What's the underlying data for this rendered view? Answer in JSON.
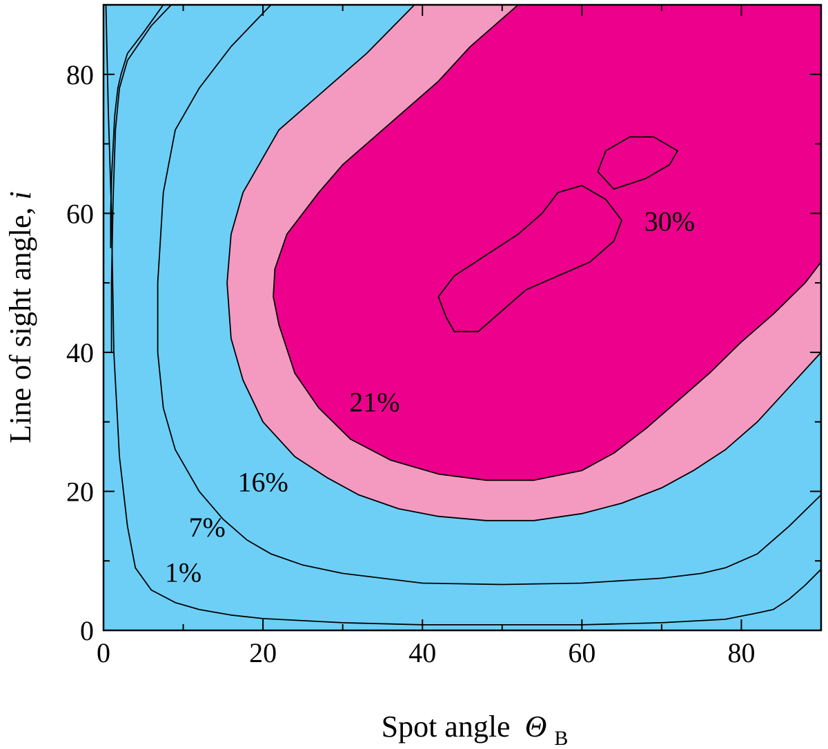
{
  "chart_data": {
    "type": "contour",
    "title": "",
    "xlabel": "Spot angle",
    "xlabel_symbol": "Θ",
    "xlabel_subscript": "B",
    "ylabel": "Line of sight angle, ",
    "ylabel_symbol": "i",
    "xlim": [
      0,
      90
    ],
    "ylim": [
      0,
      90
    ],
    "x_ticks": [
      0,
      20,
      40,
      60,
      80
    ],
    "y_ticks": [
      0,
      20,
      40,
      60,
      80
    ],
    "grid": false,
    "colors": {
      "low": "#6dcff6",
      "mid": "#f49ac1",
      "high": "#ec008c",
      "line": "#000000"
    },
    "levels": [
      {
        "label": "1%",
        "label_pos": [
          10,
          7
        ],
        "line": [
          [
            0.3,
            90
          ],
          [
            0.6,
            75
          ],
          [
            1.0,
            60
          ],
          [
            1.3,
            40
          ],
          [
            2,
            25
          ],
          [
            3,
            15
          ],
          [
            4,
            9
          ],
          [
            6,
            5.8
          ],
          [
            9,
            4
          ],
          [
            12,
            3
          ],
          [
            16,
            2.2
          ],
          [
            20,
            1.7
          ],
          [
            30,
            1.1
          ],
          [
            40,
            0.8
          ],
          [
            50,
            0.8
          ],
          [
            60,
            0.8
          ],
          [
            70,
            1.1
          ],
          [
            78,
            1.6
          ],
          [
            82,
            2.5
          ],
          [
            84,
            3
          ],
          [
            86,
            4.5
          ],
          [
            88,
            6.5
          ],
          [
            90,
            8.8
          ]
        ]
      },
      {
        "label": "7%",
        "label_pos": [
          13,
          13.5
        ],
        "line": [
          [
            7.5,
            90
          ],
          [
            5,
            86
          ],
          [
            3,
            83
          ],
          [
            2.2,
            80
          ],
          [
            1.8,
            78
          ],
          [
            1.4,
            74
          ],
          [
            1.0,
            65
          ],
          [
            0.9,
            60
          ],
          [
            0.9,
            55
          ]
        ]
      },
      {
        "label": "7%",
        "label_pos": [
          13,
          13.5
        ],
        "line": [
          [
            8.5,
            90
          ],
          [
            6,
            87
          ],
          [
            3,
            82
          ],
          [
            2,
            78
          ],
          [
            1.5,
            72
          ],
          [
            1.2,
            62
          ],
          [
            1,
            50
          ],
          [
            1,
            40
          ]
        ]
      },
      {
        "label": "7%",
        "label_pos": [
          13,
          13.5
        ],
        "line": [
          [
            21,
            90
          ],
          [
            16,
            84
          ],
          [
            12,
            78
          ],
          [
            9,
            72
          ],
          [
            7.5,
            63
          ],
          [
            6.8,
            50
          ],
          [
            6.8,
            40
          ],
          [
            7.5,
            32
          ],
          [
            9,
            26
          ],
          [
            12,
            20
          ],
          [
            15,
            16
          ],
          [
            18,
            13
          ],
          [
            21,
            11
          ],
          [
            25,
            9.4
          ],
          [
            30,
            8.2
          ],
          [
            40,
            6.8
          ],
          [
            50,
            6.6
          ],
          [
            60,
            6.8
          ],
          [
            70,
            7.5
          ],
          [
            75,
            8.2
          ],
          [
            78,
            9
          ],
          [
            82,
            11
          ],
          [
            86,
            15
          ],
          [
            90,
            19.5
          ]
        ]
      },
      {
        "label": "16%",
        "label_pos": [
          20,
          20
        ],
        "line": [
          [
            39,
            90
          ],
          [
            33,
            83
          ],
          [
            27,
            77
          ],
          [
            22,
            72
          ],
          [
            19.5,
            67
          ],
          [
            17.5,
            63
          ],
          [
            16,
            57
          ],
          [
            15.5,
            50
          ],
          [
            16,
            42
          ],
          [
            17.5,
            36
          ],
          [
            20,
            30
          ],
          [
            24,
            25
          ],
          [
            28,
            22
          ],
          [
            32,
            19.5
          ],
          [
            37,
            17.5
          ],
          [
            42,
            16.4
          ],
          [
            48,
            15.8
          ],
          [
            54,
            15.8
          ],
          [
            60,
            16.8
          ],
          [
            65,
            18.3
          ],
          [
            70,
            20.5
          ],
          [
            74,
            23
          ],
          [
            78,
            26
          ],
          [
            82,
            30
          ],
          [
            86,
            35
          ],
          [
            90,
            40
          ]
        ]
      },
      {
        "label": "21%",
        "label_pos": [
          34,
          31.5
        ],
        "line": [
          [
            52,
            90
          ],
          [
            46,
            84
          ],
          [
            42,
            79
          ],
          [
            38,
            75
          ],
          [
            34,
            71
          ],
          [
            30,
            67
          ],
          [
            27,
            63
          ],
          [
            23,
            57
          ],
          [
            21.5,
            52
          ],
          [
            21.3,
            48
          ],
          [
            22,
            44
          ],
          [
            24,
            37
          ],
          [
            27,
            32
          ],
          [
            31,
            27.5
          ],
          [
            36,
            24.5
          ],
          [
            42,
            22.5
          ],
          [
            48,
            21.6
          ],
          [
            54,
            21.6
          ],
          [
            60,
            23
          ],
          [
            64,
            25.5
          ],
          [
            68,
            29
          ],
          [
            72,
            33
          ],
          [
            76,
            37
          ],
          [
            80,
            41.5
          ],
          [
            84,
            45.5
          ],
          [
            88,
            50
          ],
          [
            90,
            53
          ]
        ]
      },
      {
        "label": "30%",
        "label_pos": [
          71,
          57.5
        ],
        "line": [
          [
            42,
            48
          ],
          [
            44,
            51
          ],
          [
            48,
            54
          ],
          [
            52,
            57
          ],
          [
            55,
            60
          ],
          [
            57,
            63
          ],
          [
            60,
            64
          ],
          [
            63,
            62
          ],
          [
            65,
            59
          ],
          [
            64,
            56
          ],
          [
            61,
            53
          ],
          [
            57,
            51
          ],
          [
            53,
            49
          ],
          [
            50,
            46
          ],
          [
            47,
            43
          ],
          [
            44,
            43
          ],
          [
            43,
            45
          ],
          [
            42,
            48
          ]
        ]
      },
      {
        "label": "30%",
        "label_pos": [
          71,
          57.5
        ],
        "line": [
          [
            62,
            66
          ],
          [
            63,
            69
          ],
          [
            66,
            71
          ],
          [
            69,
            71
          ],
          [
            72,
            69
          ],
          [
            71,
            67
          ],
          [
            68,
            65
          ],
          [
            64,
            63.5
          ],
          [
            62,
            66
          ]
        ]
      }
    ]
  }
}
